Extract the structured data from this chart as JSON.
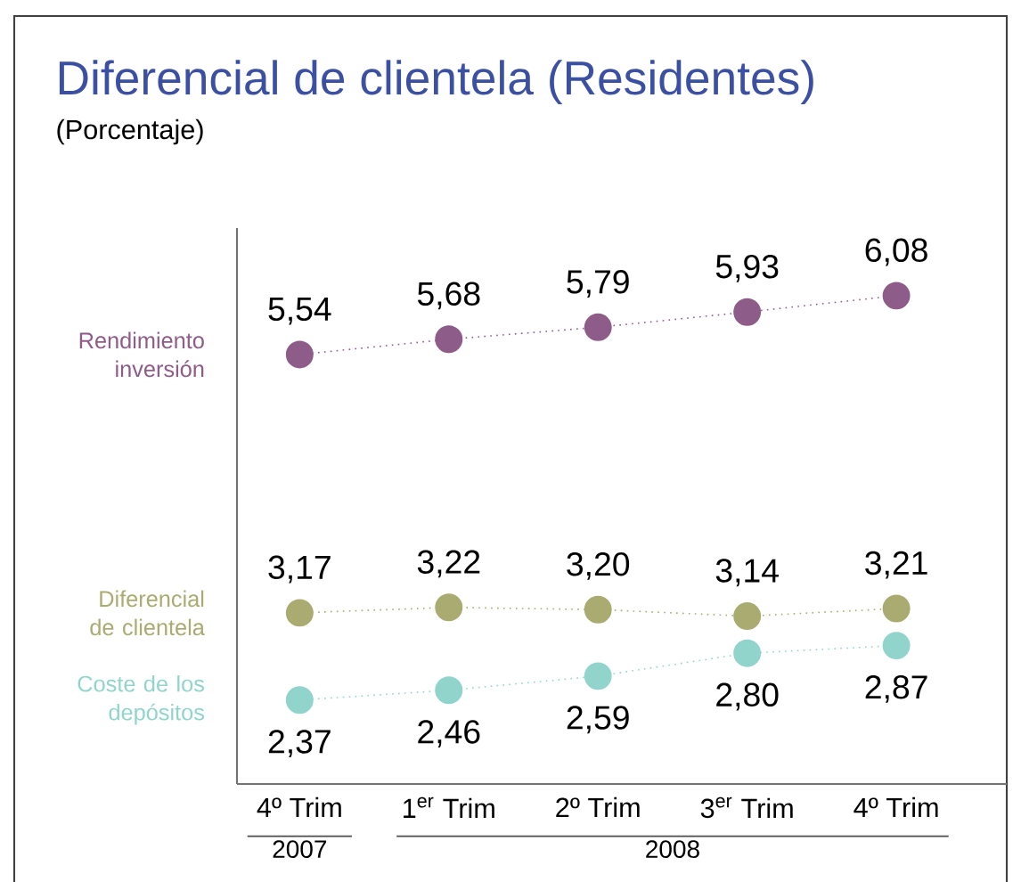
{
  "chart_data": {
    "type": "line",
    "title": "Diferencial de clientela (Residentes)",
    "subtitle": "(Porcentaje)",
    "categories": [
      "4º Trim",
      "1$^{er}$ Trim",
      "2º Trim",
      "3$^{er}$ Trim",
      "4º Trim"
    ],
    "annotations": [
      "2007",
      "2008"
    ],
    "series": [
      {
        "name": "Rendimiento inversión",
        "color": "#8e5c88",
        "values": [
          5.54,
          5.68,
          5.79,
          5.93,
          6.08
        ],
        "value_labels": [
          "5,54",
          "5,68",
          "5,79",
          "5,93",
          "6,08"
        ]
      },
      {
        "name": "Diferencial de clientela",
        "color": "#a9ab70",
        "values": [
          3.17,
          3.22,
          3.2,
          3.14,
          3.21
        ],
        "value_labels": [
          "3,17",
          "3,22",
          "3,20",
          "3,14",
          "3,21"
        ]
      },
      {
        "name": "Coste de los depósitos",
        "color": "#90d4cc",
        "values": [
          2.37,
          2.46,
          2.59,
          2.8,
          2.87
        ],
        "value_labels": [
          "2,37",
          "2,46",
          "2,59",
          "2,80",
          "2,87"
        ]
      }
    ],
    "ylim": [
      1.6,
      6.7
    ],
    "tick_labels": "x",
    "grid": false,
    "marker": "circle",
    "line_style": "dotted"
  }
}
